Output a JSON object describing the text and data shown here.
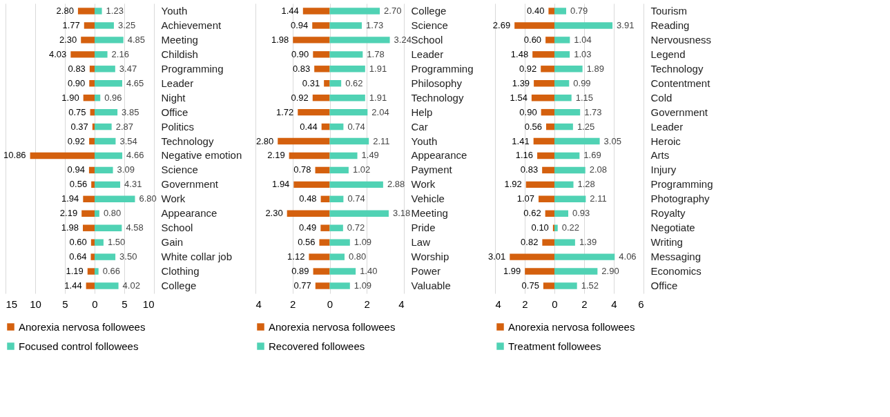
{
  "chart_data": [
    {
      "type": "bar",
      "orientation": "horizontal",
      "grid": "x",
      "legend": "bottom",
      "categories": [
        "Youth",
        "Achievement",
        "Meeting",
        "Childish",
        "Programming",
        "Leader",
        "Night",
        "Office",
        "Politics",
        "Technology",
        "Negative emotion",
        "Science",
        "Government",
        "Work",
        "Appearance",
        "School",
        "Gain",
        "White collar job",
        "Clothing",
        "College"
      ],
      "xlim": [
        -15,
        10
      ],
      "xticks": [
        {
          "value": -15,
          "label": "15"
        },
        {
          "value": -10,
          "label": "10"
        },
        {
          "value": -5,
          "label": "5"
        },
        0,
        5,
        10
      ],
      "series": [
        {
          "name": "Anorexia nervosa followees",
          "color": "#d4600e",
          "base": [
            -2.8,
            -1.77,
            -2.3,
            -4.03,
            -0.83,
            -0.9,
            -1.9,
            -0.75,
            -0.37,
            -0.92,
            -10.86,
            -0.94,
            -0.56,
            -1.94,
            -2.19,
            -1.98,
            -0.6,
            -0.64,
            -1.19,
            -1.44
          ],
          "values": [
            2.8,
            1.77,
            2.3,
            4.03,
            0.83,
            0.9,
            1.9,
            0.75,
            0.37,
            0.92,
            10.86,
            0.94,
            0.56,
            1.94,
            2.19,
            1.98,
            0.6,
            0.64,
            1.19,
            1.44
          ],
          "value_labels": [
            "2.80",
            "1.77",
            "2.30",
            "4.03",
            "0.83",
            "0.90",
            "1.90",
            "0.75",
            "0.37",
            "0.92",
            "10.86",
            "0.94",
            "0.56",
            "1.94",
            "2.19",
            "1.98",
            "0.60",
            "0.64",
            "1.19",
            "1.44"
          ]
        },
        {
          "name": "Focused control followees",
          "color": "#50d2b4",
          "values": [
            1.23,
            3.25,
            4.85,
            2.16,
            3.47,
            4.65,
            0.96,
            3.85,
            2.87,
            3.54,
            4.66,
            3.09,
            4.31,
            6.8,
            0.8,
            4.58,
            1.5,
            3.5,
            0.66,
            4.02
          ],
          "value_labels": [
            "1.23",
            "3.25",
            "4.85",
            "2.16",
            "3.47",
            "4.65",
            "0.96",
            "3.85",
            "2.87",
            "3.54",
            "4.66",
            "3.09",
            "4.31",
            "6.80",
            "0.80",
            "4.58",
            "1.50",
            "3.50",
            "0.66",
            "4.02"
          ]
        }
      ]
    },
    {
      "type": "bar",
      "orientation": "horizontal",
      "grid": "x",
      "legend": "bottom",
      "categories": [
        "College",
        "Science",
        "School",
        "Leader",
        "Programming",
        "Philosophy",
        "Technology",
        "Help",
        "Car",
        "Youth",
        "Appearance",
        "Payment",
        "Work",
        "Vehicle",
        "Meeting",
        "Pride",
        "Law",
        "Worship",
        "Power",
        "Valuable"
      ],
      "xlim": [
        -4,
        4
      ],
      "xticks": [
        {
          "value": -4,
          "label": "4"
        },
        {
          "value": -2,
          "label": "2"
        },
        0,
        2,
        4
      ],
      "series": [
        {
          "name": "Anorexia nervosa followees",
          "color": "#d4600e",
          "base": [
            -1.44,
            -0.94,
            -1.98,
            -0.9,
            -0.83,
            -0.31,
            -0.92,
            -1.72,
            -0.44,
            -2.8,
            -2.19,
            -0.78,
            -1.94,
            -0.48,
            -2.3,
            -0.49,
            -0.56,
            -1.12,
            -0.89,
            -0.77
          ],
          "values": [
            1.44,
            0.94,
            1.98,
            0.9,
            0.83,
            0.31,
            0.92,
            1.72,
            0.44,
            2.8,
            2.19,
            0.78,
            1.94,
            0.48,
            2.3,
            0.49,
            0.56,
            1.12,
            0.89,
            0.77
          ],
          "value_labels": [
            "1.44",
            "0.94",
            "1.98",
            "0.90",
            "0.83",
            "0.31",
            "0.92",
            "1.72",
            "0.44",
            "2.80",
            "2.19",
            "0.78",
            "1.94",
            "0.48",
            "2.30",
            "0.49",
            "0.56",
            "1.12",
            "0.89",
            "0.77"
          ]
        },
        {
          "name": "Recovered followees",
          "color": "#50d2b4",
          "values": [
            2.7,
            1.73,
            3.24,
            1.78,
            1.91,
            0.62,
            1.91,
            2.04,
            0.74,
            2.11,
            1.49,
            1.02,
            2.88,
            0.74,
            3.18,
            0.72,
            1.09,
            0.8,
            1.4,
            1.09
          ],
          "value_labels": [
            "2.70",
            "1.73",
            "3.24",
            "1.78",
            "1.91",
            "0.62",
            "1.91",
            "2.04",
            "0.74",
            "2.11",
            "1.49",
            "1.02",
            "2.88",
            "0.74",
            "3.18",
            "0.72",
            "1.09",
            "0.80",
            "1.40",
            "1.09"
          ]
        }
      ]
    },
    {
      "type": "bar",
      "orientation": "horizontal",
      "grid": "x",
      "legend": "bottom",
      "categories": [
        "Tourism",
        "Reading",
        "Nervousness",
        "Legend",
        "Technology",
        "Contentment",
        "Cold",
        "Government",
        "Leader",
        "Heroic",
        "Arts",
        "Injury",
        "Programming",
        "Photography",
        "Royalty",
        "Negotiate",
        "Writing",
        "Messaging",
        "Economics",
        "Office"
      ],
      "xlim": [
        -4,
        6
      ],
      "xticks": [
        {
          "value": -4,
          "label": "4"
        },
        {
          "value": -2,
          "label": "2"
        },
        0,
        2,
        4,
        6
      ],
      "series": [
        {
          "name": "Anorexia nervosa followees",
          "color": "#d4600e",
          "base": [
            -0.4,
            -2.69,
            -0.6,
            -1.48,
            -0.92,
            -1.39,
            -1.54,
            -0.9,
            -0.56,
            -1.41,
            -1.16,
            -0.83,
            -1.92,
            -1.07,
            -0.62,
            -0.1,
            -0.82,
            -3.01,
            -1.99,
            -0.75
          ],
          "values": [
            0.4,
            2.69,
            0.6,
            1.48,
            0.92,
            1.39,
            1.54,
            0.9,
            0.56,
            1.41,
            1.16,
            0.83,
            1.92,
            1.07,
            0.62,
            0.1,
            0.82,
            3.01,
            1.99,
            0.75
          ],
          "value_labels": [
            "0.40",
            "2.69",
            "0.60",
            "1.48",
            "0.92",
            "1.39",
            "1.54",
            "0.90",
            "0.56",
            "1.41",
            "1.16",
            "0.83",
            "1.92",
            "1.07",
            "0.62",
            "0.10",
            "0.82",
            "3.01",
            "1.99",
            "0.75"
          ]
        },
        {
          "name": "Treatment followees",
          "color": "#50d2b4",
          "values": [
            0.79,
            3.91,
            1.04,
            1.03,
            1.89,
            0.99,
            1.15,
            1.73,
            1.25,
            3.05,
            1.69,
            2.08,
            1.28,
            2.11,
            0.93,
            0.22,
            1.39,
            4.06,
            2.9,
            1.52
          ],
          "value_labels": [
            "0.79",
            "3.91",
            "1.04",
            "1.03",
            "1.89",
            "0.99",
            "1.15",
            "1.73",
            "1.25",
            "3.05",
            "1.69",
            "2.08",
            "1.28",
            "2.11",
            "0.93",
            "0.22",
            "1.39",
            "4.06",
            "2.90",
            "1.52"
          ]
        }
      ]
    }
  ]
}
